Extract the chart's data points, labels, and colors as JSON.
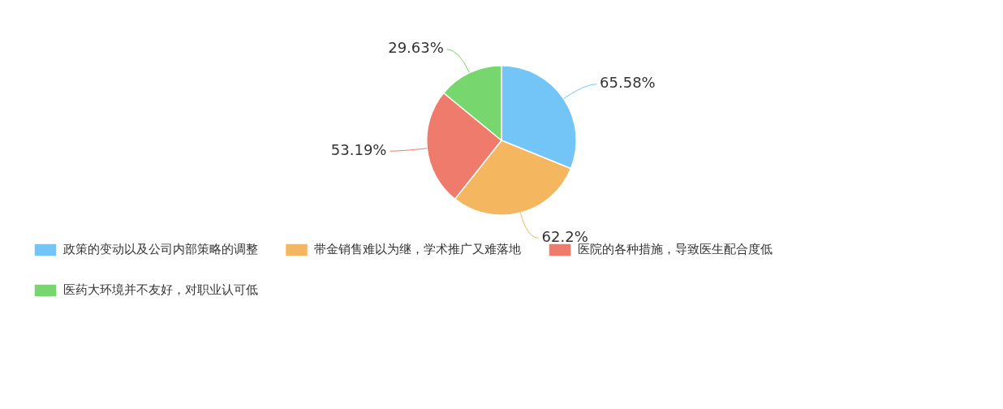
{
  "chart_data": {
    "type": "pie",
    "categories": [
      "政策的变动以及公司内部策略的调整",
      "带金销售难以为继，学术推广又难落地",
      "医院的各种措施，导致医生配合度低",
      "医药大环境并不友好，对职业认可低"
    ],
    "values": [
      65.58,
      62.2,
      53.19,
      29.63
    ],
    "colors": [
      "#73c5f7",
      "#f4b75f",
      "#ef7b6c",
      "#77d66e"
    ],
    "value_labels": [
      "65.58%",
      "62.2%",
      "53.19%",
      "29.63%"
    ],
    "legend": "bottom"
  }
}
